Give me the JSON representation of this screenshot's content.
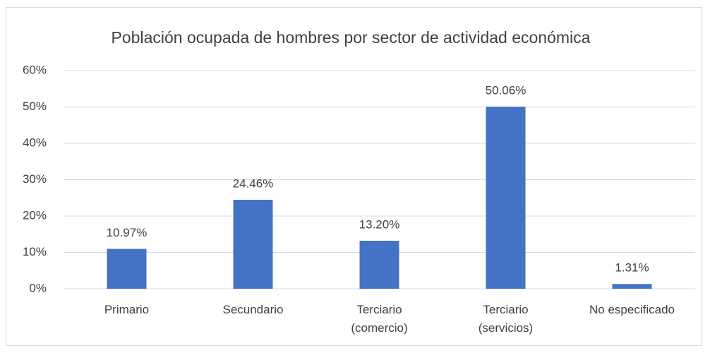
{
  "chart_data": {
    "type": "bar",
    "title": "Población ocupada de hombres por sector de actividad económica",
    "categories": [
      "Primario",
      "Secundario",
      "Terciario\n(comercio)",
      "Terciario\n(servicios)",
      "No especificado"
    ],
    "values": [
      10.97,
      24.46,
      13.2,
      50.06,
      1.31
    ],
    "value_labels": [
      "10.97%",
      "24.46%",
      "13.20%",
      "50.06%",
      "1.31%"
    ],
    "color": "#4472c4",
    "ylim": [
      0,
      60
    ],
    "yticks": [
      {
        "value": 0,
        "label": "0%"
      },
      {
        "value": 10,
        "label": "10%"
      },
      {
        "value": 20,
        "label": "20%"
      },
      {
        "value": 30,
        "label": "30%"
      },
      {
        "value": 40,
        "label": "40%"
      },
      {
        "value": 50,
        "label": "50%"
      },
      {
        "value": 60,
        "label": "60%"
      }
    ],
    "grid": true
  }
}
